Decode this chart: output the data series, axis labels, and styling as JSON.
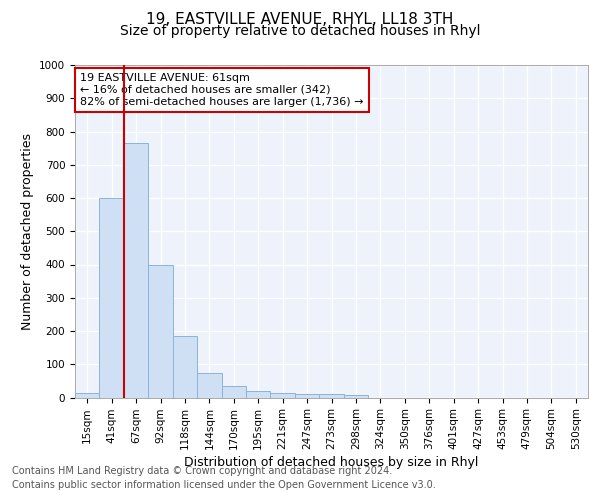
{
  "title1": "19, EASTVILLE AVENUE, RHYL, LL18 3TH",
  "title2": "Size of property relative to detached houses in Rhyl",
  "xlabel": "Distribution of detached houses by size in Rhyl",
  "ylabel": "Number of detached properties",
  "categories": [
    "15sqm",
    "41sqm",
    "67sqm",
    "92sqm",
    "118sqm",
    "144sqm",
    "170sqm",
    "195sqm",
    "221sqm",
    "247sqm",
    "273sqm",
    "298sqm",
    "324sqm",
    "350sqm",
    "376sqm",
    "401sqm",
    "427sqm",
    "453sqm",
    "479sqm",
    "504sqm",
    "530sqm"
  ],
  "values": [
    15,
    600,
    765,
    400,
    185,
    75,
    35,
    20,
    15,
    12,
    12,
    8,
    0,
    0,
    0,
    0,
    0,
    0,
    0,
    0,
    0
  ],
  "bar_color": "#cfe0f5",
  "bar_edge_color": "#8ab4d8",
  "vline_x_idx": 2,
  "vline_color": "#cc0000",
  "annotation_text": "19 EASTVILLE AVENUE: 61sqm\n← 16% of detached houses are smaller (342)\n82% of semi-detached houses are larger (1,736) →",
  "annotation_box_color": "#ffffff",
  "annotation_box_edge": "#cc0000",
  "footnote1": "Contains HM Land Registry data © Crown copyright and database right 2024.",
  "footnote2": "Contains public sector information licensed under the Open Government Licence v3.0.",
  "ylim": [
    0,
    1000
  ],
  "yticks": [
    0,
    100,
    200,
    300,
    400,
    500,
    600,
    700,
    800,
    900,
    1000
  ],
  "bg_color": "#eef3fb",
  "grid_color": "#ffffff",
  "title1_fontsize": 11,
  "title2_fontsize": 10,
  "axis_label_fontsize": 9,
  "tick_fontsize": 7.5,
  "footnote_fontsize": 7
}
